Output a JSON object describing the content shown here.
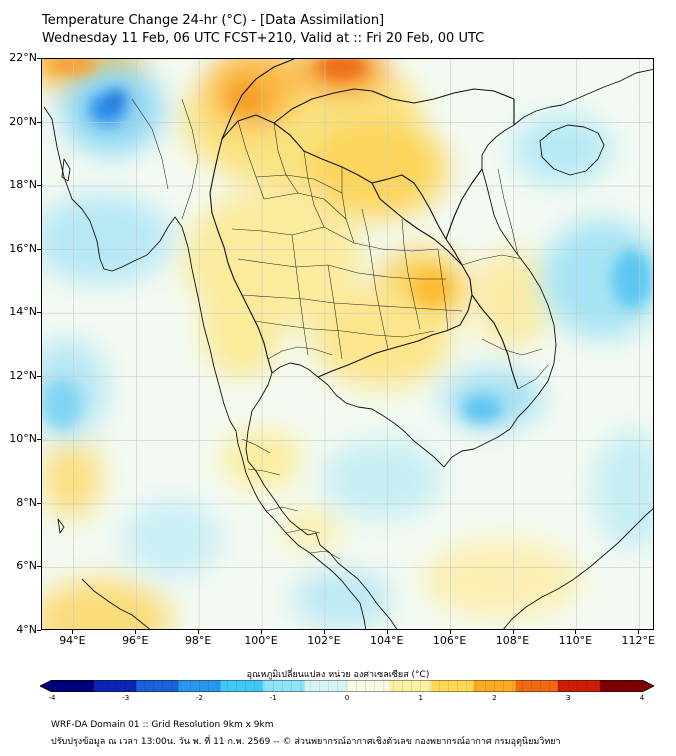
{
  "header": {
    "title_line1": "Temperature Change 24-hr (°C) - [Data Assimilation]",
    "title_line2": "Wednesday 11 Feb, 06 UTC FCST+210, Valid at :: Fri 20 Feb, 00 UTC"
  },
  "map": {
    "lat_labels": [
      "22°N",
      "20°N",
      "18°N",
      "16°N",
      "14°N",
      "12°N",
      "10°N",
      "8°N",
      "6°N",
      "4°N"
    ],
    "lat_values": [
      22,
      20,
      18,
      16,
      14,
      12,
      10,
      8,
      6,
      4
    ],
    "lon_labels": [
      "94°E",
      "96°E",
      "98°E",
      "100°E",
      "102°E",
      "104°E",
      "106°E",
      "108°E",
      "110°E",
      "112°E"
    ],
    "lon_values": [
      94,
      96,
      98,
      100,
      102,
      104,
      106,
      108,
      110,
      112
    ],
    "extent": {
      "lon_min": 93,
      "lon_max": 112.5,
      "lat_min": 4,
      "lat_max": 22
    },
    "colors": {
      "background": "#f4f9ee",
      "coast": "#111111",
      "grid": "#c8c8c8"
    }
  },
  "colorbar": {
    "title": "อุณหภูมิเปลี่ยนแปลง หน่วย องศาเซลเซียส (°C)",
    "min": -4,
    "max": 4,
    "tick_labels": [
      "-4",
      "-3",
      "-2",
      "-1",
      "0",
      "1",
      "2",
      "3",
      "4"
    ],
    "tick_values": [
      -4,
      -3,
      -2,
      -1,
      0,
      1,
      2,
      3,
      4
    ],
    "colors": [
      "#00007a",
      "#0a25b4",
      "#1a60d8",
      "#2a96ee",
      "#40c8f4",
      "#8fe4f8",
      "#d6f4f6",
      "#fafbe6",
      "#fbf0a4",
      "#fcd954",
      "#fbac24",
      "#f06a12",
      "#cc1e06",
      "#7e0000"
    ]
  },
  "footer": {
    "line1": "WRF-DA Domain 01 :: Grid Resolution 9km x 9km",
    "line2": "ปรับปรุงข้อมูล ณ เวลา 13:00น. วัน พ. ที่ 11 ก.พ. 2569 -- © ส่วนพยากรณ์อากาศเชิงตัวเลข กองพยากรณ์อากาศ กรมอุตุนิยมวิทยา"
  }
}
